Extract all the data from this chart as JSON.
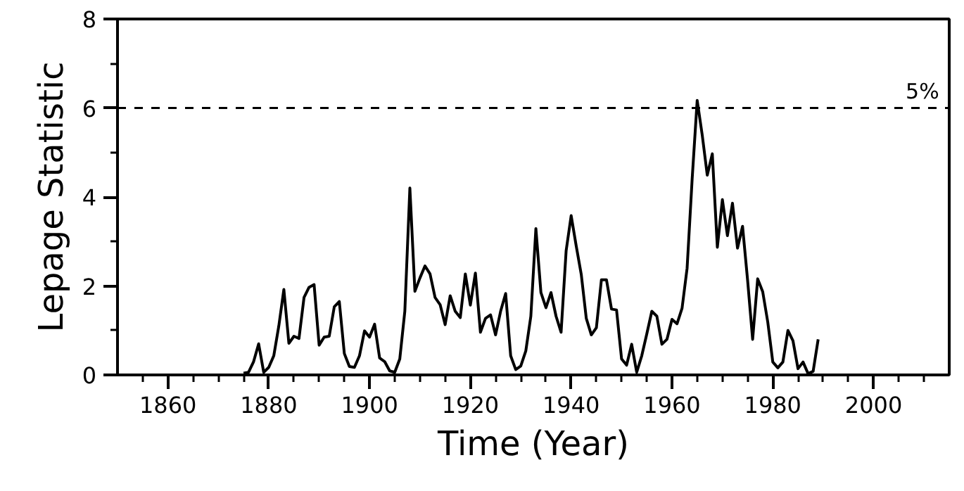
{
  "chart_data": {
    "type": "line",
    "xlabel": "Time (Year)",
    "ylabel": "Lepage Statistic",
    "x": [
      1875,
      1876,
      1877,
      1878,
      1879,
      1880,
      1881,
      1882,
      1883,
      1884,
      1885,
      1886,
      1887,
      1888,
      1889,
      1890,
      1891,
      1892,
      1893,
      1894,
      1895,
      1896,
      1897,
      1898,
      1899,
      1900,
      1901,
      1902,
      1903,
      1904,
      1905,
      1906,
      1907,
      1908,
      1909,
      1910,
      1911,
      1912,
      1913,
      1914,
      1915,
      1916,
      1917,
      1918,
      1919,
      1920,
      1921,
      1922,
      1923,
      1924,
      1925,
      1926,
      1927,
      1928,
      1929,
      1930,
      1931,
      1932,
      1933,
      1934,
      1935,
      1936,
      1937,
      1938,
      1939,
      1940,
      1941,
      1942,
      1943,
      1944,
      1945,
      1946,
      1947,
      1948,
      1949,
      1950,
      1951,
      1952,
      1953,
      1954,
      1955,
      1956,
      1957,
      1958,
      1959,
      1960,
      1961,
      1962,
      1963,
      1964,
      1965,
      1966,
      1967,
      1968,
      1969,
      1970,
      1971,
      1972,
      1973,
      1974,
      1975,
      1976,
      1977,
      1978,
      1979,
      1980,
      1981,
      1982,
      1983,
      1984,
      1985,
      1986,
      1987,
      1988,
      1989
    ],
    "series": [
      {
        "color": "#000000",
        "values": [
          0.04,
          0.06,
          0.3,
          0.7,
          0.06,
          0.17,
          0.43,
          1.1,
          1.92,
          0.71,
          0.87,
          0.82,
          1.74,
          1.97,
          2.03,
          0.67,
          0.85,
          0.87,
          1.53,
          1.65,
          0.48,
          0.19,
          0.17,
          0.43,
          0.99,
          0.85,
          1.14,
          0.38,
          0.3,
          0.09,
          0.06,
          0.36,
          1.43,
          4.2,
          1.88,
          2.18,
          2.45,
          2.27,
          1.74,
          1.58,
          1.13,
          1.78,
          1.43,
          1.29,
          2.27,
          1.57,
          2.29,
          0.96,
          1.27,
          1.35,
          0.9,
          1.43,
          1.83,
          0.43,
          0.12,
          0.2,
          0.54,
          1.32,
          3.29,
          1.85,
          1.51,
          1.85,
          1.32,
          0.96,
          2.79,
          3.58,
          2.9,
          2.26,
          1.27,
          0.9,
          1.06,
          2.14,
          2.14,
          1.48,
          1.46,
          0.36,
          0.22,
          0.69,
          0.06,
          0.43,
          0.92,
          1.43,
          1.32,
          0.69,
          0.8,
          1.25,
          1.15,
          1.5,
          2.4,
          4.4,
          6.17,
          5.39,
          4.49,
          4.97,
          2.87,
          3.94,
          3.13,
          3.86,
          2.85,
          3.34,
          2.13,
          0.8,
          2.16,
          1.87,
          1.19,
          0.29,
          0.16,
          0.29,
          1.0,
          0.77,
          0.14,
          0.29,
          0.03,
          0.08,
          0.8
        ]
      }
    ],
    "xlim": [
      1850,
      2015
    ],
    "ylim": [
      0,
      8
    ],
    "xticks": [
      {
        "value": 1855,
        "label": null
      },
      1860,
      {
        "value": 1865,
        "label": null
      },
      {
        "value": 1870,
        "label": null
      },
      {
        "value": 1875,
        "label": null
      },
      1880,
      {
        "value": 1885,
        "label": null
      },
      {
        "value": 1890,
        "label": null
      },
      {
        "value": 1895,
        "label": null
      },
      1900,
      {
        "value": 1905,
        "label": null
      },
      {
        "value": 1910,
        "label": null
      },
      {
        "value": 1915,
        "label": null
      },
      1920,
      {
        "value": 1925,
        "label": null
      },
      {
        "value": 1930,
        "label": null
      },
      {
        "value": 1935,
        "label": null
      },
      1940,
      {
        "value": 1945,
        "label": null
      },
      {
        "value": 1950,
        "label": null
      },
      {
        "value": 1955,
        "label": null
      },
      1960,
      {
        "value": 1965,
        "label": null
      },
      {
        "value": 1970,
        "label": null
      },
      {
        "value": 1975,
        "label": null
      },
      1980,
      {
        "value": 1985,
        "label": null
      },
      {
        "value": 1990,
        "label": null
      },
      {
        "value": 1995,
        "label": null
      },
      2000,
      {
        "value": 2005,
        "label": null
      },
      {
        "value": 2010,
        "label": null
      }
    ],
    "yticks": [
      0,
      {
        "value": 1,
        "label": null
      },
      2,
      {
        "value": 3,
        "label": null
      },
      4,
      {
        "value": 5,
        "label": null
      },
      6,
      {
        "value": 7,
        "label": null
      },
      8
    ],
    "ref_lines": [
      {
        "axis": "y",
        "value": 6,
        "color": "#000000",
        "line_style": "dashed"
      }
    ],
    "annotations": [
      {
        "text": "5%",
        "x": 2013,
        "y": 6
      }
    ],
    "grid": false,
    "marker": "none",
    "line_style": "solid"
  }
}
